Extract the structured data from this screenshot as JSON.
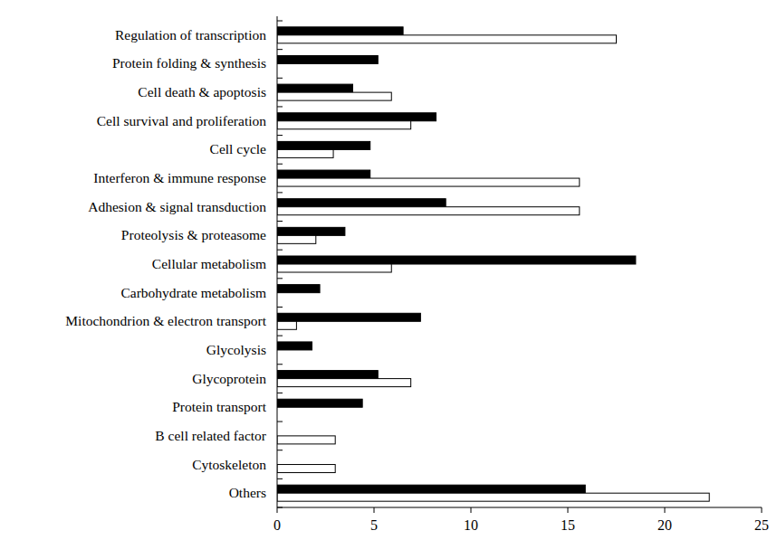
{
  "chart_data": {
    "type": "bar",
    "orientation": "horizontal",
    "categories": [
      "Regulation of transcription",
      "Protein folding & synthesis",
      "Cell death & apoptosis",
      "Cell survival and proliferation",
      "Cell cycle",
      "Interferon & immune response",
      "Adhesion & signal transduction",
      "Proteolysis & proteasome",
      "Cellular metabolism",
      "Carbohydrate metabolism",
      "Mitochondrion & electron transport",
      "Glycolysis",
      "Glycoprotein",
      "Protein transport",
      "B cell related factor",
      "Cytoskeleton",
      "Others"
    ],
    "series": [
      {
        "color": "#000000",
        "values": [
          6.5,
          5.2,
          3.9,
          8.2,
          4.8,
          4.8,
          8.7,
          3.5,
          18.5,
          2.2,
          7.4,
          1.8,
          5.2,
          4.4,
          0,
          0,
          15.9
        ]
      },
      {
        "color": "#ffffff",
        "values": [
          17.5,
          0,
          5.9,
          6.9,
          2.9,
          15.6,
          15.6,
          2.0,
          5.9,
          0,
          1.0,
          0,
          6.9,
          0,
          3.0,
          3.0,
          22.3
        ]
      }
    ],
    "xlim": [
      0,
      25
    ],
    "xticks": [
      0,
      5,
      10,
      15,
      20,
      25
    ]
  }
}
